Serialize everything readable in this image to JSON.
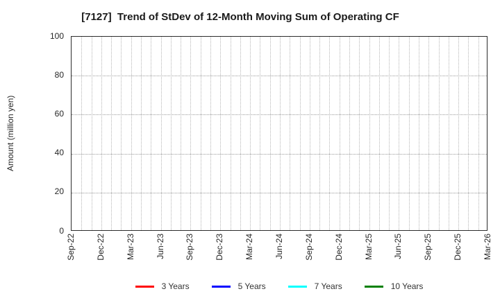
{
  "figure": {
    "title": "[7127]  Trend of StDev of 12-Month Moving Sum of Operating CF"
  },
  "chart_data": {
    "type": "line",
    "title": "[7127]  Trend of StDev of 12-Month Moving Sum of Operating CF",
    "xlabel": "",
    "ylabel": "Amount (million yen)",
    "ylim": [
      0,
      100
    ],
    "yticks": [
      0,
      20,
      40,
      60,
      80,
      100
    ],
    "xticklabels": [
      "Sep-22",
      "Dec-22",
      "Mar-23",
      "Jun-23",
      "Sep-23",
      "Dec-23",
      "Mar-24",
      "Jun-24",
      "Sep-24",
      "Dec-24",
      "Mar-25",
      "Jun-25",
      "Sep-25",
      "Dec-25",
      "Mar-26"
    ],
    "x_minor_grid_interval_months": 1,
    "x_tick_interval_months": 3,
    "grid": "dotted vertical gridline every month, dotted horizontal gridline at each y tick",
    "legend_position": "bottom center",
    "series": [
      {
        "name": "3 Years",
        "color": "#ff0000",
        "values": []
      },
      {
        "name": "5 Years",
        "color": "#0000ff",
        "values": []
      },
      {
        "name": "7 Years",
        "color": "#00ffff",
        "values": []
      },
      {
        "name": "10 Years",
        "color": "#008000",
        "values": []
      }
    ],
    "note": "plot area is empty - no data lines are drawn"
  },
  "colors": {
    "frame": "#2b2b2b",
    "grid_vertical": "#b5b5b5",
    "grid_horizontal": "#999999",
    "text": "#262626"
  }
}
